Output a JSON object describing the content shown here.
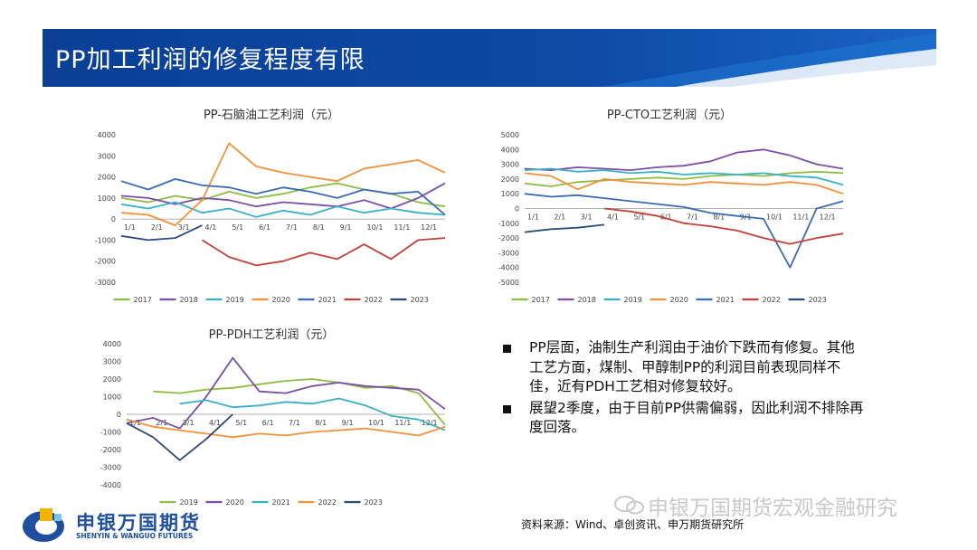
{
  "header": {
    "title": "PP加工利润的修复程度有限"
  },
  "charts": [
    {
      "title": "PP-石脑油工艺利润（元）"
    },
    {
      "title": "PP-CTO工艺利润（元）"
    },
    {
      "title": "PP-PDH工艺利润（元）"
    }
  ],
  "notes": {
    "items": [
      "PP层面，油制生产利润由于油价下跌而有修复。其他工艺方面，煤制、甲醇制PP的利润目前表现同样不佳，近有PDH工艺相对修复较好。",
      "展望2季度，由于目前PP供需偏弱，因此利润不排除再度回落。"
    ]
  },
  "source": "资料来源：Wind、卓创资讯、申万期货研究所",
  "watermark": "申银万国期货宏观金融研究",
  "logo": {
    "cn": "申银万国期货",
    "en": "SHENYIN & WANGUO FUTURES"
  },
  "colors": {
    "banner": "#0d4aa6",
    "2017": "#8fbc45",
    "2018": "#7a4fa8",
    "2019": "#3ab0c8",
    "2020": "#f0923c",
    "2021": "#3a6cb4",
    "2022": "#c0413a",
    "2023": "#2c4b78"
  },
  "chart_data": [
    {
      "type": "line",
      "title": "PP-石脑油工艺利润（元）",
      "x_ticks": [
        "1/1",
        "2/1",
        "3/1",
        "4/1",
        "5/1",
        "6/1",
        "7/1",
        "8/1",
        "9/1",
        "10/1",
        "11/1",
        "12/1"
      ],
      "ylim": [
        -3000,
        4000
      ],
      "y_ticks": [
        "4000",
        "3000",
        "2000",
        "1000",
        "0",
        "-1000",
        "-2000",
        "-3000"
      ],
      "series": [
        {
          "name": "2017",
          "color": "#8fbc45",
          "values": [
            1000,
            800,
            1100,
            900,
            1300,
            1000,
            1200,
            1500,
            1700,
            1400,
            1200,
            800,
            600
          ]
        },
        {
          "name": "2018",
          "color": "#7a4fa8",
          "values": [
            1100,
            1000,
            700,
            1000,
            900,
            600,
            800,
            700,
            600,
            900,
            500,
            1000,
            1700
          ]
        },
        {
          "name": "2019",
          "color": "#3ab0c8",
          "values": [
            700,
            500,
            800,
            300,
            500,
            100,
            400,
            200,
            600,
            300,
            500,
            300,
            200
          ]
        },
        {
          "name": "2020",
          "color": "#f0923c",
          "values": [
            300,
            200,
            -300,
            900,
            3600,
            2500,
            2200,
            2000,
            1800,
            2400,
            2600,
            2800,
            2200
          ]
        },
        {
          "name": "2021",
          "color": "#3a6cb4",
          "values": [
            1800,
            1400,
            1900,
            1600,
            1500,
            1200,
            1500,
            1300,
            1000,
            1400,
            1200,
            1300,
            200
          ]
        },
        {
          "name": "2022",
          "color": "#c0413a",
          "values": [
            null,
            null,
            null,
            -1000,
            -1800,
            -2200,
            -2000,
            -1600,
            -1900,
            -1200,
            -1900,
            -1000,
            -900
          ]
        },
        {
          "name": "2023",
          "color": "#2c4b78",
          "values": [
            -800,
            -1000,
            -900,
            -300
          ]
        }
      ]
    },
    {
      "type": "line",
      "title": "PP-CTO工艺利润（元）",
      "x_ticks": [
        "1/1",
        "2/1",
        "3/1",
        "4/1",
        "5/1",
        "6/1",
        "7/1",
        "8/1",
        "9/1",
        "10/1",
        "11/1",
        "12/1"
      ],
      "ylim": [
        -5000,
        5000
      ],
      "y_ticks": [
        "5000",
        "4000",
        "3000",
        "2000",
        "1000",
        "0",
        "-1000",
        "-2000",
        "-3000",
        "-4000",
        "-5000"
      ],
      "series": [
        {
          "name": "2017",
          "color": "#8fbc45",
          "values": [
            1700,
            1500,
            1800,
            1900,
            2000,
            2100,
            2000,
            2200,
            2300,
            2200,
            2400,
            2500,
            2400
          ]
        },
        {
          "name": "2018",
          "color": "#7a4fa8",
          "values": [
            2700,
            2600,
            2800,
            2700,
            2600,
            2800,
            2900,
            3200,
            3800,
            4000,
            3600,
            3000,
            2700
          ]
        },
        {
          "name": "2019",
          "color": "#3ab0c8",
          "values": [
            2600,
            2700,
            2500,
            2600,
            2400,
            2500,
            2300,
            2400,
            2300,
            2400,
            2200,
            2100,
            1600
          ]
        },
        {
          "name": "2020",
          "color": "#f0923c",
          "values": [
            2400,
            2200,
            1300,
            2000,
            1800,
            1700,
            1600,
            1800,
            1700,
            1600,
            1800,
            1600,
            1000
          ]
        },
        {
          "name": "2021",
          "color": "#3a6cb4",
          "values": [
            1000,
            800,
            900,
            700,
            500,
            300,
            100,
            -300,
            -500,
            -700,
            -4000,
            0,
            500
          ]
        },
        {
          "name": "2022",
          "color": "#c0413a",
          "values": [
            null,
            null,
            null,
            0,
            -200,
            -500,
            -1000,
            -1200,
            -1500,
            -2000,
            -2400,
            -2000,
            -1700
          ]
        },
        {
          "name": "2023",
          "color": "#2c4b78",
          "values": [
            -1600,
            -1400,
            -1300,
            -1100
          ]
        }
      ]
    },
    {
      "type": "line",
      "title": "PP-PDH工艺利润（元）",
      "x_ticks": [
        "1/1",
        "2/1",
        "3/1",
        "4/1",
        "5/1",
        "6/1",
        "7/1",
        "8/1",
        "9/1",
        "10/1",
        "11/1",
        "12/1"
      ],
      "ylim": [
        -4000,
        4000
      ],
      "y_ticks": [
        "4000",
        "3000",
        "2000",
        "1000",
        "0",
        "-1000",
        "-2000",
        "-3000",
        "-4000"
      ],
      "series": [
        {
          "name": "2019",
          "color": "#8fbc45",
          "values": [
            null,
            1300,
            1200,
            1400,
            1500,
            1700,
            1900,
            2000,
            1800,
            1500,
            1600,
            1200,
            -600
          ]
        },
        {
          "name": "2020",
          "color": "#7a4fa8",
          "values": [
            -500,
            -200,
            -800,
            1000,
            3200,
            1300,
            1200,
            1600,
            1800,
            1600,
            1500,
            1400,
            300
          ]
        },
        {
          "name": "2021",
          "color": "#3ab0c8",
          "values": [
            null,
            null,
            600,
            800,
            400,
            500,
            700,
            600,
            900,
            500,
            -100,
            -300,
            -900
          ]
        },
        {
          "name": "2022",
          "color": "#f0923c",
          "values": [
            -300,
            -700,
            -900,
            -1100,
            -1300,
            -1100,
            -1200,
            -1000,
            -900,
            -800,
            -1000,
            -1200,
            -700
          ]
        },
        {
          "name": "2023",
          "color": "#2c4b78",
          "values": [
            -500,
            -1300,
            -2600,
            -1400,
            0
          ]
        }
      ]
    }
  ]
}
